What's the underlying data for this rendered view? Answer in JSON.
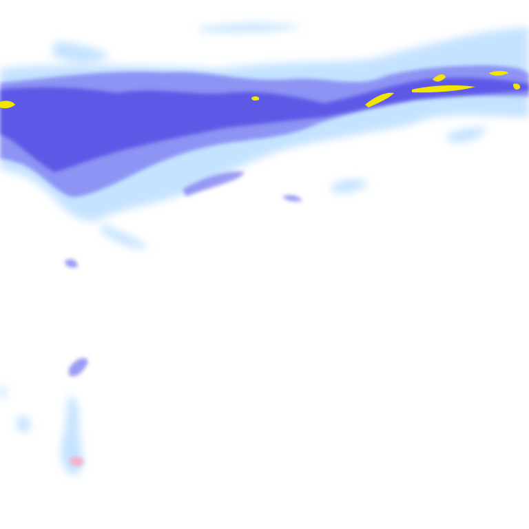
{
  "map": {
    "type": "precipitation-radar-tile",
    "colors": {
      "background": "#ffffff",
      "light": "#bfe0ff",
      "light_mid": "#8cc4f5",
      "moderate": "#7a7af0",
      "heavy": "#4a3ee0",
      "intense": "#f2e600",
      "mixed": "#f5b0c8"
    }
  }
}
